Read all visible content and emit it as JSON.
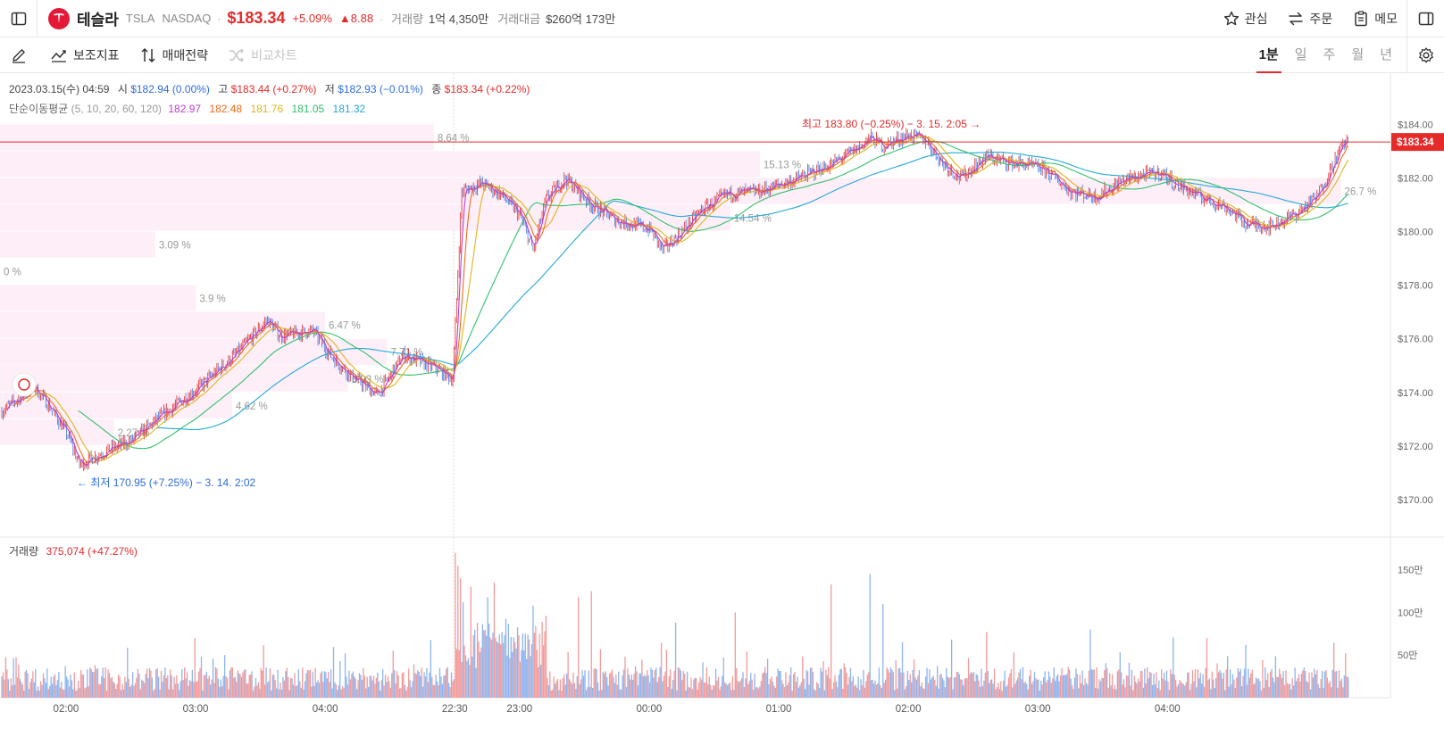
{
  "header": {
    "stock_name": "테슬라",
    "ticker": "TSLA",
    "exchange": "NASDAQ",
    "price": "$183.34",
    "change_pct": "+5.09%",
    "change": "▲8.88",
    "volume_label": "거래량",
    "volume_value": "1억 4,350만",
    "amount_label": "거래대금",
    "amount_value": "$260억 173만",
    "actions": {
      "watch": "관심",
      "order": "주문",
      "memo": "메모"
    }
  },
  "toolbar": {
    "indicators": "보조지표",
    "strategy": "매매전략",
    "compare": "비교차트",
    "periods": [
      "1분",
      "일",
      "주",
      "월",
      "년"
    ]
  },
  "ohlc": {
    "date": "2023.03.15(수) 04:59",
    "open_label": "시",
    "open": "$182.94 (0.00%)",
    "high_label": "고",
    "high": "$183.44 (+0.27%)",
    "low_label": "저",
    "low": "$182.93 (−0.01%)",
    "close_label": "종",
    "close": "$183.34 (+0.22%)"
  },
  "ma": {
    "label": "단순이동평균",
    "periods": "(5, 10, 20, 60, 120)",
    "values": [
      "182.97",
      "182.48",
      "181.76",
      "181.05",
      "181.32"
    ],
    "colors": [
      "#b73fd0",
      "#ef6c1a",
      "#e0b41d",
      "#33c06b",
      "#23a9d6"
    ]
  },
  "volume_indicator": {
    "label": "거래량",
    "value": "375,074 (+47.27%)"
  },
  "colors": {
    "up": "#e52a2a",
    "down": "#3b7be0",
    "up_vol": "#f29a9a",
    "down_vol": "#8db4ee",
    "profile": "#fdeef8"
  },
  "chart_data": {
    "type": "candlestick",
    "y_axis": {
      "min": 169.5,
      "max": 185.0,
      "ticks": [
        "$184.00",
        "$182.00",
        "$180.00",
        "$178.00",
        "$176.00",
        "$174.00",
        "$172.00",
        "$170.00"
      ],
      "tick_values": [
        184,
        182,
        180,
        178,
        176,
        174,
        172,
        170
      ]
    },
    "x_axis": {
      "ticks": [
        "02:00",
        "03:00",
        "04:00",
        "22:30",
        "23:00",
        "00:00",
        "01:00",
        "02:00",
        "03:00",
        "04:00"
      ],
      "tick_bar_index": [
        50,
        150,
        250,
        350,
        400,
        500,
        600,
        700,
        800,
        900
      ]
    },
    "current_price_tag": "$183.34",
    "current_price": 183.34,
    "high_annotation": "최고 183.80 (−0.25%) − 3. 15. 2:05 →",
    "low_annotation": "← 최저 170.95 (+7.25%) − 3. 14. 2:02",
    "volume_axis": {
      "max": 180,
      "ticks": [
        "150만",
        "100만",
        "50만"
      ],
      "tick_values": [
        150,
        100,
        50
      ]
    },
    "price_profile": [
      {
        "from": 183.0,
        "to": 184.0,
        "pct": "8.64 %",
        "share": 0.2591
      },
      {
        "from": 182.0,
        "to": 183.0,
        "pct": "15.13 %",
        "share": 0.4538
      },
      {
        "from": 181.0,
        "to": 182.0,
        "pct": "26.7 %",
        "share": 0.8008
      },
      {
        "from": 180.0,
        "to": 181.0,
        "pct": "14.54 %",
        "share": 0.4361
      },
      {
        "from": 179.0,
        "to": 180.0,
        "pct": "3.09 %",
        "share": 0.0927
      },
      {
        "from": 178.0,
        "to": 179.0,
        "pct": "0 %",
        "share": 0.0
      },
      {
        "from": 177.0,
        "to": 178.0,
        "pct": "3.9 %",
        "share": 0.117
      },
      {
        "from": 176.0,
        "to": 177.0,
        "pct": "6.47 %",
        "share": 0.1941
      },
      {
        "from": 175.0,
        "to": 176.0,
        "pct": "7.71 %",
        "share": 0.2312
      },
      {
        "from": 174.0,
        "to": 175.0,
        "pct": "6.93 %",
        "share": 0.2079
      },
      {
        "from": 173.0,
        "to": 174.0,
        "pct": "4.62 %",
        "share": 0.1386
      },
      {
        "from": 172.0,
        "to": 173.0,
        "pct": "2.27 %",
        "share": 0.0681
      }
    ],
    "price_path": [
      [
        0,
        173.3
      ],
      [
        25,
        174.2
      ],
      [
        35,
        173.6
      ],
      [
        50,
        172.5
      ],
      [
        60,
        171.3
      ],
      [
        80,
        171.8
      ],
      [
        100,
        172.2
      ],
      [
        120,
        173.0
      ],
      [
        150,
        174.1
      ],
      [
        180,
        175.4
      ],
      [
        205,
        176.7
      ],
      [
        215,
        176.1
      ],
      [
        240,
        176.3
      ],
      [
        255,
        175.3
      ],
      [
        270,
        174.6
      ],
      [
        290,
        173.9
      ],
      [
        310,
        175.4
      ],
      [
        335,
        174.9
      ],
      [
        348,
        174.5
      ],
      [
        350,
        176.5
      ],
      [
        355,
        181.5
      ],
      [
        370,
        181.8
      ],
      [
        385,
        181.4
      ],
      [
        400,
        180.6
      ],
      [
        410,
        179.3
      ],
      [
        420,
        181.2
      ],
      [
        435,
        182.0
      ],
      [
        455,
        181.0
      ],
      [
        475,
        180.4
      ],
      [
        500,
        180.1
      ],
      [
        510,
        179.3
      ],
      [
        525,
        180.0
      ],
      [
        540,
        180.8
      ],
      [
        560,
        181.4
      ],
      [
        585,
        181.5
      ],
      [
        610,
        181.9
      ],
      [
        640,
        182.5
      ],
      [
        660,
        183.1
      ],
      [
        670,
        183.5
      ],
      [
        680,
        183.2
      ],
      [
        700,
        183.6
      ],
      [
        713,
        183.4
      ],
      [
        725,
        182.6
      ],
      [
        740,
        182.0
      ],
      [
        760,
        182.8
      ],
      [
        775,
        182.6
      ],
      [
        790,
        182.5
      ],
      [
        805,
        182.3
      ],
      [
        825,
        181.5
      ],
      [
        845,
        181.3
      ],
      [
        865,
        181.9
      ],
      [
        880,
        182.1
      ],
      [
        895,
        182.2
      ],
      [
        905,
        181.8
      ],
      [
        925,
        181.3
      ],
      [
        945,
        180.9
      ],
      [
        960,
        180.3
      ],
      [
        980,
        180.2
      ],
      [
        1000,
        180.7
      ],
      [
        1015,
        181.3
      ],
      [
        1027,
        182.5
      ],
      [
        1036,
        183.34
      ]
    ],
    "volume_spikes": [
      {
        "bar": 350,
        "value": 170
      },
      {
        "bar": 352,
        "value": 155
      },
      {
        "bar": 354,
        "value": 140
      },
      {
        "bar": 356,
        "value": 112
      },
      {
        "bar": 362,
        "value": 130
      },
      {
        "bar": 375,
        "value": 118
      },
      {
        "bar": 380,
        "value": 135
      },
      {
        "bar": 410,
        "value": 108
      },
      {
        "bar": 420,
        "value": 96
      },
      {
        "bar": 445,
        "value": 118
      },
      {
        "bar": 455,
        "value": 125
      },
      {
        "bar": 520,
        "value": 88
      },
      {
        "bar": 566,
        "value": 100
      },
      {
        "bar": 640,
        "value": 133
      },
      {
        "bar": 670,
        "value": 145
      },
      {
        "bar": 680,
        "value": 110
      },
      {
        "bar": 760,
        "value": 77
      },
      {
        "bar": 840,
        "value": 80
      },
      {
        "bar": 930,
        "value": 70
      },
      {
        "bar": 960,
        "value": 62
      }
    ]
  }
}
